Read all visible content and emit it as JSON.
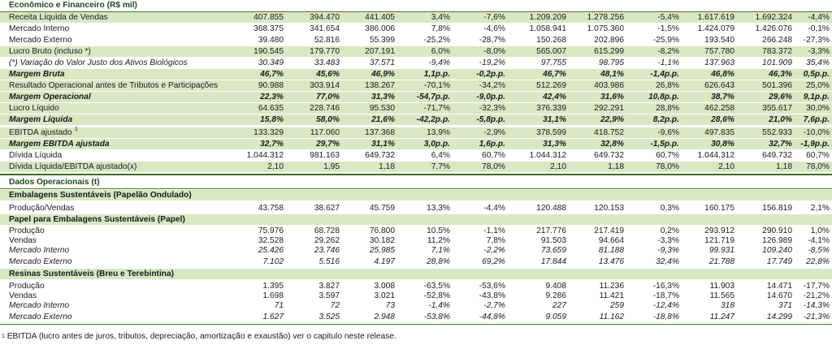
{
  "section_financial": "Econômico e Financeiro (R$ mil)",
  "fin_rows": [
    {
      "label": "Receita Líquida de Vendas",
      "values": [
        "407.855",
        "394.470",
        "441.405",
        "3,4%",
        "-7,6%",
        "1.209.209",
        "1.278.256",
        "-5,4%",
        "1.617.619",
        "1.692.324",
        "-4,4%"
      ]
    },
    {
      "label": "Mercado Interno",
      "values": [
        "368.375",
        "341.654",
        "386.006",
        "7,8%",
        "-4,6%",
        "1.058.941",
        "1.075.360",
        "-1,5%",
        "1.424.079",
        "1.426.076",
        "-0,1%"
      ]
    },
    {
      "label": "Mercado Externo",
      "values": [
        "39.480",
        "52.816",
        "55.399",
        "-25,2%",
        "-28,7%",
        "150.268",
        "202.896",
        "-25,9%",
        "193.540",
        "266.248",
        "-27,3%"
      ]
    },
    {
      "label": "Lucro Bruto (incluso *)",
      "values": [
        "190.545",
        "179.770",
        "207.191",
        "6,0%",
        "-8,0%",
        "565.007",
        "615.299",
        "-8,2%",
        "757.780",
        "783.372",
        "-3,3%"
      ]
    },
    {
      "label": "(*) Variação do Valor Justo dos Ativos Biológicos",
      "values": [
        "30.349",
        "33.483",
        "37.571",
        "-9,4%",
        "-19,2%",
        "97.755",
        "98.795",
        "-1,1%",
        "137.963",
        "101.909",
        "35,4%"
      ]
    },
    {
      "label": "Margem Bruta",
      "values": [
        "46,7%",
        "45,6%",
        "46,9%",
        "1,1p.p.",
        "-0,2p.p.",
        "46,7%",
        "48,1%",
        "-1,4p.p.",
        "46,8%",
        "46,3%",
        "0,5p.p."
      ]
    },
    {
      "label": "Resultado Operacional antes de Tributos e Participações",
      "values": [
        "90.988",
        "303.914",
        "138.267",
        "-70,1%",
        "-34,2%",
        "512.269",
        "403.986",
        "26,8%",
        "626.643",
        "501.396",
        "25,0%"
      ]
    },
    {
      "label": "Margem Operacional",
      "values": [
        "22,3%",
        "77,0%",
        "31,3%",
        "-54,7p.p.",
        "-9,0p.p.",
        "42,4%",
        "31,6%",
        "10,8p.p.",
        "38,7%",
        "29,6%",
        "9,1p.p."
      ]
    },
    {
      "label": "Lucro Líquido",
      "values": [
        "64.635",
        "228.746",
        "95.530",
        "-71,7%",
        "-32,3%",
        "376.339",
        "292.291",
        "28,8%",
        "462.258",
        "355.617",
        "30,0%"
      ]
    },
    {
      "label": "Margem Líquida",
      "values": [
        "15,8%",
        "58,0%",
        "21,6%",
        "-42,2p.p.",
        "-5,8p.p.",
        "31,1%",
        "22,9%",
        "8,2p.p.",
        "28,6%",
        "21,0%",
        "7,6p.p."
      ]
    },
    {
      "label": "EBITDA ajustado",
      "sup": "1",
      "values": [
        "133.329",
        "117.060",
        "137.368",
        "13,9%",
        "-2,9%",
        "378.599",
        "418.752",
        "-9,6%",
        "497.835",
        "552.933",
        "-10,0%"
      ]
    },
    {
      "label": "Margem EBITDA ajustada",
      "values": [
        "32,7%",
        "29,7%",
        "31,1%",
        "3,0p.p.",
        "1,6p.p.",
        "31,3%",
        "32,8%",
        "-1,5p.p.",
        "30,8%",
        "32,7%",
        "-1,9p.p."
      ]
    },
    {
      "label": "Dívida Líquida",
      "values": [
        "1.044.312",
        "981.163",
        "649.732",
        "6,4%",
        "60,7%",
        "1.044.312",
        "649.732",
        "60,7%",
        "1.044.312",
        "649.732",
        "60,7%"
      ]
    },
    {
      "label": "Dívida Líquida/EBITDA ajustado(x)",
      "values": [
        "2,10",
        "1,95",
        "1,18",
        "7,7%",
        "78,0%",
        "2,10",
        "1,18",
        "78,0%",
        "2,10",
        "1,18",
        "78,0%"
      ]
    }
  ],
  "section_operational": "Dados Operacionais (t)",
  "op_blocks": [
    {
      "title": "Embalagens Sustentáveis  (Papelão Ondulado)",
      "rows": [
        {
          "label": "Produção/Vendas",
          "values": [
            "43.758",
            "38.627",
            "45.759",
            "13,3%",
            "-4,4%",
            "120.488",
            "120.153",
            "0,3%",
            "160.175",
            "156.819",
            "2,1%"
          ]
        }
      ]
    },
    {
      "title": "Papel para Embalagens Sustentáveis (Papel)",
      "rows": [
        {
          "label": "Produção",
          "values": [
            "75.976",
            "68.728",
            "76.800",
            "10,5%",
            "-1,1%",
            "217.776",
            "217.419",
            "0,2%",
            "293.912",
            "290.910",
            "1,0%"
          ]
        },
        {
          "label": "Vendas",
          "values": [
            "32.528",
            "29.262",
            "30.182",
            "11,2%",
            "7,8%",
            "91.503",
            "94.664",
            "-3,3%",
            "121.719",
            "126.989",
            "-4,1%"
          ]
        },
        {
          "label": "Mercado Interno",
          "values": [
            "25.426",
            "23.746",
            "25.985",
            "7,1%",
            "-2,2%",
            "73.659",
            "81.188",
            "-9,3%",
            "99.931",
            "109.240",
            "-8,5%"
          ]
        },
        {
          "label": "Mercado Externo",
          "values": [
            "7.102",
            "5.516",
            "4.197",
            "28,8%",
            "69,2%",
            "17.844",
            "13.476",
            "32,4%",
            "21.788",
            "17.749",
            "22,8%"
          ]
        }
      ]
    },
    {
      "title": "Resinas Sustentáveis (Breu e Terebintina)",
      "rows": [
        {
          "label": "Produção",
          "values": [
            "1.395",
            "3.827",
            "3.008",
            "-63,5%",
            "-53,6%",
            "9.408",
            "11.236",
            "-16,3%",
            "11.903",
            "14.471",
            "-17,7%"
          ]
        },
        {
          "label": "Vendas",
          "values": [
            "1.698",
            "3.597",
            "3.021",
            "-52,8%",
            "-43,8%",
            "9.286",
            "11.421",
            "-18,7%",
            "11.565",
            "14.670",
            "-21,2%"
          ]
        },
        {
          "label": "Mercado Interno",
          "values": [
            "71",
            "72",
            "73",
            "-1,4%",
            "-2,7%",
            "227",
            "259",
            "-12,4%",
            "318",
            "371",
            "-14,3%"
          ]
        },
        {
          "label": "Mercado Externo",
          "values": [
            "1.627",
            "3.525",
            "2.948",
            "-53,8%",
            "-44,8%",
            "9.059",
            "11.162",
            "-18,8%",
            "11.247",
            "14.299",
            "-21,3%"
          ]
        }
      ]
    }
  ],
  "footnote_sup": "1",
  "footnote": "EBITDA (lucro antes de juros, tributos, depreciação, amortização e exaustão) ver o capitulo neste release.",
  "colors": {
    "shade": "#d9e7c3",
    "rule": "#4a7a2c",
    "section_title": "#1d4a18"
  }
}
